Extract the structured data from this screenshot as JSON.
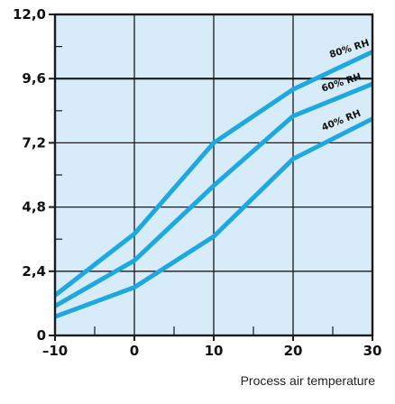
{
  "chart_data": {
    "type": "line",
    "title": "",
    "xlabel": "Process air temperature",
    "ylabel": "",
    "xlim": [
      -10,
      30
    ],
    "ylim": [
      0,
      12
    ],
    "grid": true,
    "x_ticks": [
      -10,
      0,
      10,
      20,
      30
    ],
    "x_tick_labels": [
      "–10",
      "0",
      "10",
      "20",
      "30"
    ],
    "y_ticks": [
      0,
      2.4,
      4.8,
      7.2,
      9.6,
      12
    ],
    "y_tick_labels": [
      "0",
      "2,4",
      "4,8",
      "7,2",
      "9,6",
      "12,0"
    ],
    "series": [
      {
        "name": "80% RH",
        "x": [
          -10,
          0,
          10,
          20,
          30
        ],
        "values": [
          1.5,
          3.8,
          7.2,
          9.2,
          10.6
        ]
      },
      {
        "name": "60% RH",
        "x": [
          -10,
          0,
          10,
          20,
          30
        ],
        "values": [
          1.1,
          2.8,
          5.6,
          8.2,
          9.4
        ]
      },
      {
        "name": "40% RH",
        "x": [
          -10,
          0,
          10,
          20,
          30
        ],
        "values": [
          0.7,
          1.8,
          3.7,
          6.6,
          8.1
        ]
      }
    ],
    "colors": {
      "plot_background": "#d7ecf8",
      "line": "#1ea8e0",
      "grid": "#1a1a1a"
    }
  }
}
